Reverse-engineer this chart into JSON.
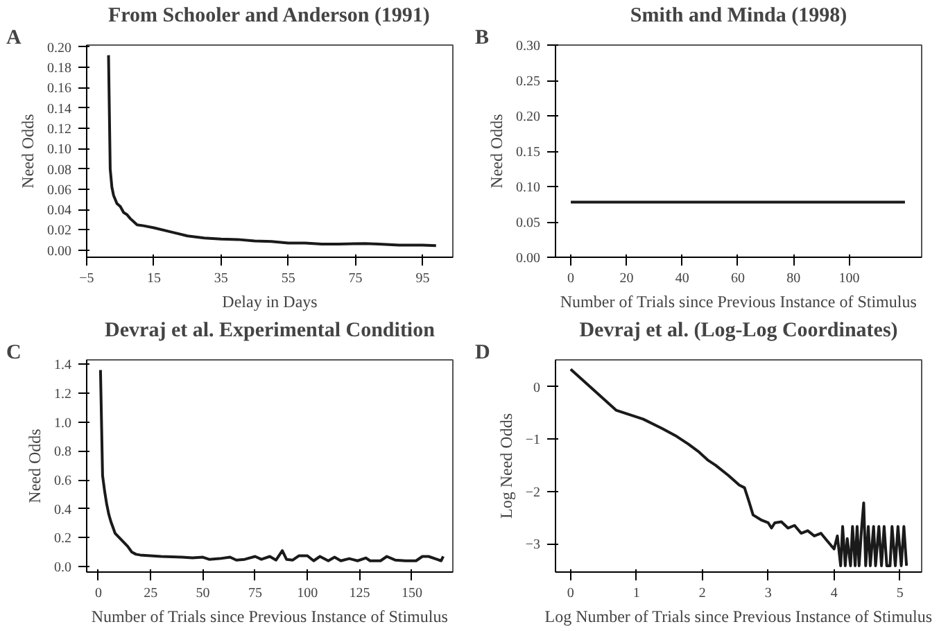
{
  "chart_data": [
    {
      "type": "line",
      "title": "From Schooler and Anderson (1991)",
      "annotations": [
        "A"
      ],
      "xlabel": "Delay in Days",
      "ylabel": "Need Odds",
      "xlim": [
        -5,
        104
      ],
      "xticks": [
        {
          "value": -5,
          "label": "−5"
        },
        15,
        35,
        55,
        75,
        95
      ],
      "ylim": [
        -0.007,
        0.202
      ],
      "yticks": [
        {
          "value": 0,
          "label": "0.00"
        },
        {
          "value": 0.02,
          "label": "0.02"
        },
        {
          "value": 0.04,
          "label": "0.04"
        },
        {
          "value": 0.06,
          "label": "0.06"
        },
        {
          "value": 0.08,
          "label": "0.08"
        },
        {
          "value": 0.1,
          "label": "0.10"
        },
        {
          "value": 0.12,
          "label": "0.12"
        },
        {
          "value": 0.14,
          "label": "0.14"
        },
        {
          "value": 0.16,
          "label": "0.16"
        },
        {
          "value": 0.18,
          "label": "0.18"
        },
        {
          "value": 0.2,
          "label": "0.20"
        }
      ],
      "grid": false,
      "series": [
        {
          "color": "#1a1a1a",
          "x": [
            1.5,
            2,
            2.5,
            3,
            4,
            5,
            6,
            7,
            8,
            9,
            10,
            12,
            15,
            20,
            25,
            30,
            35,
            40,
            45,
            50,
            55,
            60,
            65,
            70,
            78,
            82,
            88,
            95,
            99
          ],
          "values": [
            0.192,
            0.08,
            0.062,
            0.054,
            0.046,
            0.043,
            0.037,
            0.035,
            0.031,
            0.028,
            0.025,
            0.024,
            0.022,
            0.018,
            0.014,
            0.012,
            0.011,
            0.0105,
            0.009,
            0.0085,
            0.007,
            0.007,
            0.006,
            0.006,
            0.0065,
            0.006,
            0.005,
            0.005,
            0.0045
          ]
        }
      ]
    },
    {
      "type": "line",
      "title": "Smith and Minda (1998)",
      "annotations": [
        "B"
      ],
      "xlabel": "Number of Trials since Previous Instance of Stimulus",
      "ylabel": "Need Odds",
      "xlim": [
        -5.5,
        126
      ],
      "xticks": [
        0,
        20,
        40,
        60,
        80,
        100
      ],
      "ylim": [
        0,
        0.3
      ],
      "yticks": [
        {
          "value": 0,
          "label": "0.00"
        },
        {
          "value": 0.05,
          "label": "0.05"
        },
        {
          "value": 0.1,
          "label": "0.10"
        },
        {
          "value": 0.15,
          "label": "0.15"
        },
        {
          "value": 0.2,
          "label": "0.20"
        },
        {
          "value": 0.25,
          "label": "0.25"
        },
        {
          "value": 0.3,
          "label": "0.30"
        }
      ],
      "grid": false,
      "series": [
        {
          "color": "#1a1a1a",
          "x": [
            0,
            120
          ],
          "values": [
            0.078,
            0.078
          ]
        }
      ]
    },
    {
      "type": "line",
      "title": "Devraj et al. Experimental Condition",
      "annotations": [
        "C"
      ],
      "xlabel": "Number of Trials since Previous Instance of Stimulus",
      "ylabel": "Need Odds",
      "xlim": [
        -5.6,
        169.6
      ],
      "xticks": [
        0,
        25,
        50,
        75,
        100,
        125,
        150
      ],
      "ylim": [
        -0.038,
        1.43
      ],
      "yticks": [
        {
          "value": 0,
          "label": "0.0"
        },
        {
          "value": 0.2,
          "label": "0.2"
        },
        {
          "value": 0.4,
          "label": "0.4"
        },
        {
          "value": 0.6,
          "label": "0.6"
        },
        {
          "value": 0.8,
          "label": "0.8"
        },
        {
          "value": 1,
          "label": "1.0"
        },
        {
          "value": 1.2,
          "label": "1.2"
        },
        {
          "value": 1.4,
          "label": "1.4"
        }
      ],
      "grid": false,
      "series": [
        {
          "color": "#1a1a1a",
          "x": [
            1,
            2,
            3,
            4,
            5,
            6,
            7,
            8,
            10,
            12,
            14,
            16,
            18,
            20,
            25,
            30,
            35,
            40,
            45,
            50,
            53,
            58,
            63,
            66,
            70,
            75,
            78,
            82,
            85,
            88,
            90,
            93,
            96,
            100,
            103,
            106,
            110,
            113,
            116,
            120,
            124,
            128,
            130,
            135,
            138,
            142,
            147,
            152,
            155,
            158,
            162,
            164,
            165
          ],
          "values": [
            1.36,
            0.63,
            0.52,
            0.43,
            0.36,
            0.31,
            0.27,
            0.23,
            0.2,
            0.17,
            0.14,
            0.1,
            0.085,
            0.08,
            0.075,
            0.07,
            0.068,
            0.065,
            0.06,
            0.065,
            0.05,
            0.055,
            0.065,
            0.045,
            0.05,
            0.07,
            0.05,
            0.07,
            0.045,
            0.11,
            0.05,
            0.045,
            0.075,
            0.075,
            0.04,
            0.07,
            0.04,
            0.065,
            0.04,
            0.055,
            0.04,
            0.06,
            0.04,
            0.04,
            0.07,
            0.045,
            0.04,
            0.04,
            0.07,
            0.07,
            0.05,
            0.04,
            0.07
          ]
        }
      ]
    },
    {
      "type": "line",
      "title": "Devraj et al. (Log-Log Coordinates)",
      "annotations": [
        "D"
      ],
      "xlabel": "Log Number of Trials since Previous Instance of Stimulus",
      "ylabel": "Log Need Odds",
      "xlim": [
        -0.23,
        5.33
      ],
      "xticks": [
        0,
        1,
        2,
        3,
        4,
        5
      ],
      "ylim": [
        -3.54,
        0.51
      ],
      "yticks": [
        {
          "value": -3,
          "label": "−3"
        },
        {
          "value": -2,
          "label": "−2"
        },
        {
          "value": -1,
          "label": "−1"
        },
        0
      ],
      "grid": false,
      "series": [
        {
          "color": "#1a1a1a",
          "x": [
            0,
            0.69,
            1.1,
            1.39,
            1.61,
            1.79,
            1.95,
            2.08,
            2.2,
            2.4,
            2.56,
            2.64,
            2.71,
            2.77,
            2.9,
            3.0,
            3.05,
            3.1,
            3.2,
            3.3,
            3.4,
            3.5,
            3.6,
            3.7,
            3.8,
            3.9,
            4.0,
            4.05,
            4.1,
            4.13,
            4.17,
            4.2,
            4.25,
            4.28,
            4.32,
            4.35,
            4.38,
            4.42,
            4.45,
            4.48,
            4.52,
            4.55,
            4.6,
            4.63,
            4.68,
            4.72,
            4.76,
            4.8,
            4.85,
            4.88,
            4.93,
            4.97,
            5.02,
            5.06,
            5.1
          ],
          "values": [
            0.33,
            -0.45,
            -0.62,
            -0.8,
            -0.95,
            -1.1,
            -1.25,
            -1.4,
            -1.5,
            -1.7,
            -1.88,
            -1.93,
            -2.2,
            -2.45,
            -2.55,
            -2.6,
            -2.7,
            -2.6,
            -2.58,
            -2.7,
            -2.65,
            -2.8,
            -2.75,
            -2.85,
            -2.8,
            -2.95,
            -3.1,
            -2.85,
            -3.42,
            -2.67,
            -3.42,
            -2.9,
            -3.42,
            -2.67,
            -3.42,
            -2.67,
            -3.42,
            -2.67,
            -2.22,
            -3.42,
            -2.67,
            -3.42,
            -2.67,
            -3.42,
            -2.67,
            -3.42,
            -2.67,
            -3.42,
            -3.42,
            -2.67,
            -3.42,
            -2.67,
            -3.42,
            -2.67,
            -3.42
          ]
        }
      ]
    }
  ]
}
